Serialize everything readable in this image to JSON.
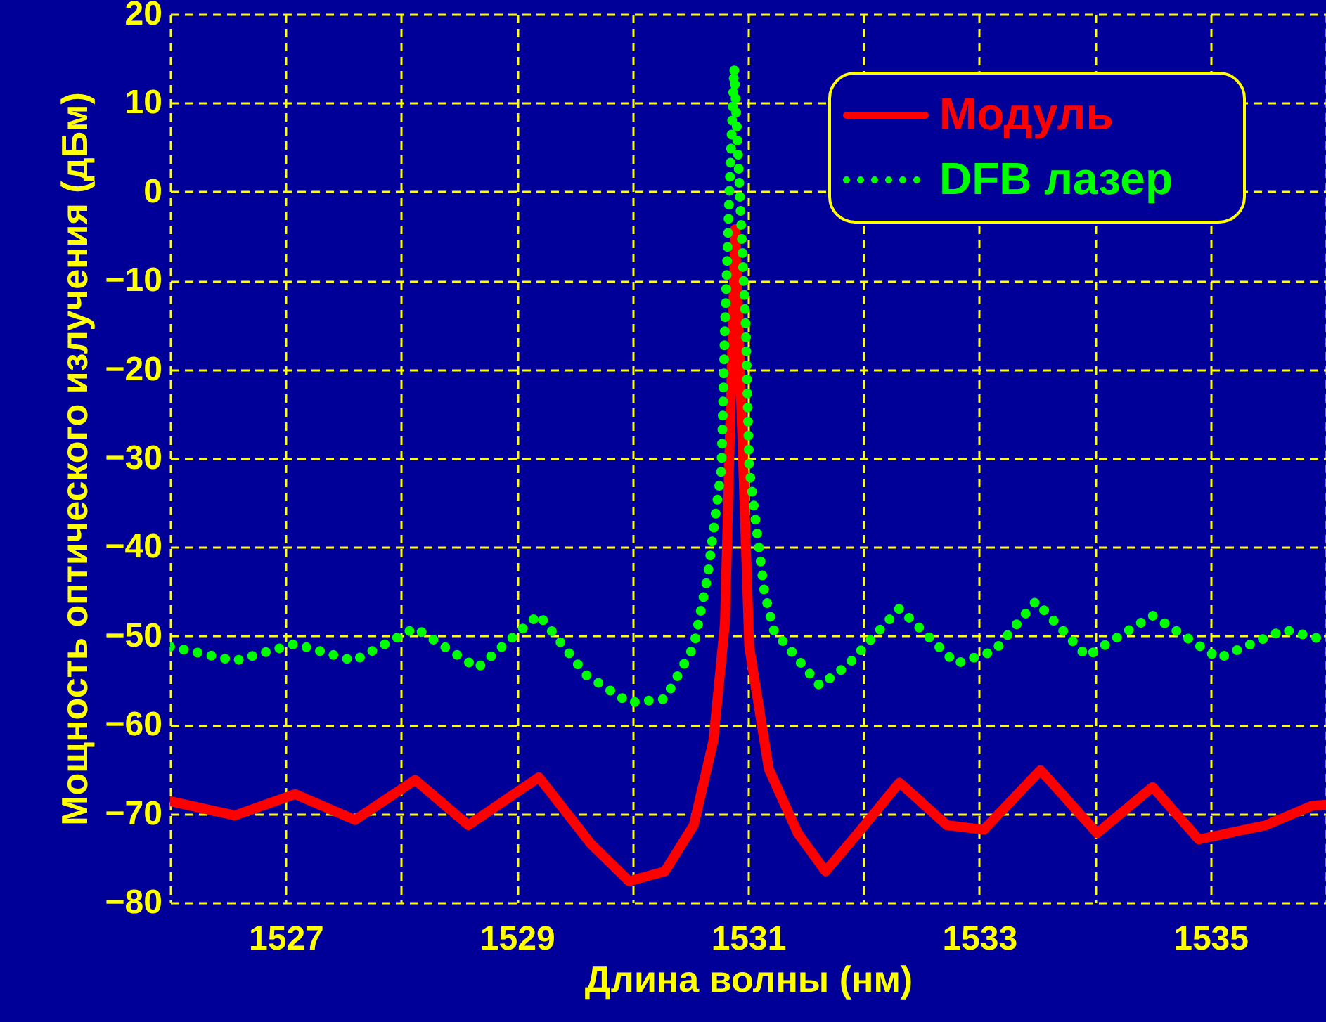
{
  "chart_data": {
    "type": "line",
    "xlabel": "Длина волны (нм)",
    "ylabel": "Мощность оптического излучения (дБм)",
    "xlim": [
      1526,
      1536
    ],
    "ylim": [
      -80,
      20
    ],
    "xticks": [
      {
        "value": 1526,
        "label": null
      },
      1527,
      {
        "value": 1528,
        "label": null
      },
      1529,
      {
        "value": 1530,
        "label": null
      },
      1531,
      {
        "value": 1532,
        "label": null
      },
      1533,
      {
        "value": 1534,
        "label": null
      },
      1535,
      {
        "value": 1536,
        "label": null
      }
    ],
    "yticks": [
      20,
      10,
      0,
      -10,
      -20,
      -30,
      -40,
      -50,
      -60,
      -70,
      -80
    ],
    "grid": true,
    "legend": "top right",
    "series": [
      {
        "name": "Модуль",
        "color": "#ff0000",
        "line_style": "solid",
        "x": [
          1526,
          1526.56,
          1527.08,
          1527.6,
          1528.12,
          1528.58,
          1529.19,
          1529.64,
          1529.97,
          1530.28,
          1530.53,
          1530.7,
          1530.8,
          1530.89,
          1531.01,
          1531.18,
          1531.43,
          1531.67,
          1531.95,
          1532.31,
          1532.72,
          1533.04,
          1533.53,
          1534.02,
          1534.5,
          1534.9,
          1535.48,
          1535.88,
          1536
        ],
        "values": [
          -68.6,
          -70.2,
          -67.8,
          -70.7,
          -66.2,
          -71.3,
          -65.9,
          -73.4,
          -77.6,
          -76.5,
          -71.3,
          -61.8,
          -48.5,
          -4.2,
          -51.2,
          -65,
          -72.2,
          -76.5,
          -72.2,
          -66.5,
          -71.3,
          -71.8,
          -65.1,
          -72.2,
          -67,
          -72.9,
          -71.3,
          -69.1,
          -69
        ]
      },
      {
        "name": "DFB лазер",
        "color": "#00ff00",
        "line_style": "dotted",
        "x": [
          1526,
          1526.56,
          1527.08,
          1527.59,
          1528.12,
          1528.66,
          1529.19,
          1529.6,
          1529.97,
          1530.28,
          1530.53,
          1530.65,
          1530.77,
          1530.8,
          1530.84,
          1530.88,
          1530.98,
          1531.01,
          1531.06,
          1531.14,
          1531.22,
          1531.62,
          1531.86,
          1532.31,
          1532.8,
          1533.13,
          1533.49,
          1533.93,
          1534.5,
          1535.07,
          1535.64,
          1535.97
        ],
        "values": [
          -51.2,
          -52.8,
          -50.9,
          -52.8,
          -49.1,
          -53.6,
          -47.6,
          -54.4,
          -57.5,
          -57.1,
          -51.2,
          -43.3,
          -31.1,
          -15.3,
          0.5,
          14,
          -15.3,
          -31.1,
          -36.5,
          -44.9,
          -49.3,
          -55.6,
          -53.3,
          -46.9,
          -53.1,
          -51.7,
          -46.1,
          -52.3,
          -47.7,
          -52.5,
          -49.3,
          -50.4
        ]
      }
    ]
  }
}
